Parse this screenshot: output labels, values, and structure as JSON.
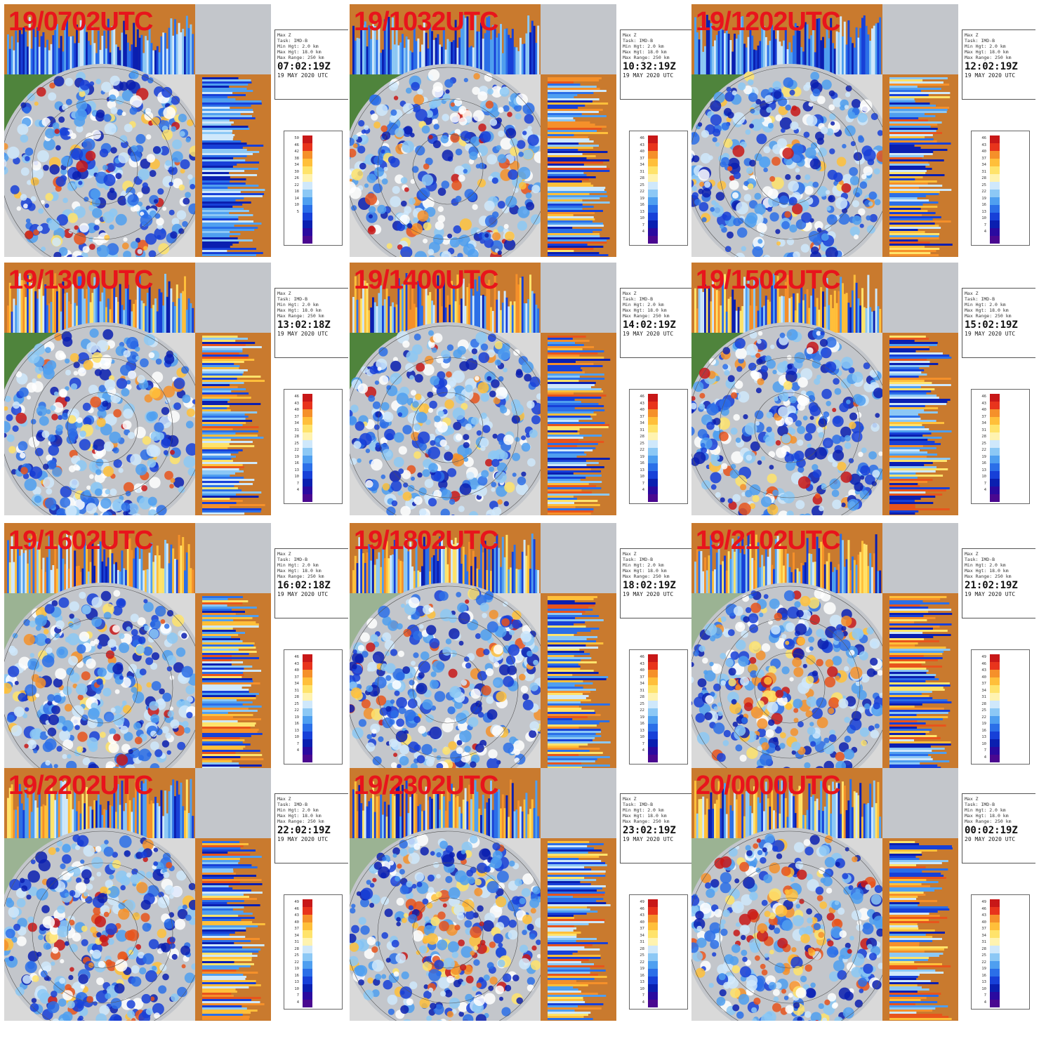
{
  "colors": {
    "timestamp_red": "#e8141c",
    "land_green": "#3f7a2a",
    "range_gray": "#c3c6cb",
    "side_brown": "#c97a2e"
  },
  "info_lines": [
    "Max Z",
    "Task: IMD-B",
    "Min Hgt: 2.0 km",
    "Max Hgt: 18.0 km",
    "Max Range: 250 km"
  ],
  "panels": [
    {
      "stamp": "19/0702UTC",
      "clock": "07:02:19Z",
      "date": "19 MAY 2020 UTC",
      "scale": [
        "50",
        "46",
        "42",
        "38",
        "34",
        "30",
        "26",
        "22",
        "18",
        "14",
        "10",
        "5"
      ]
    },
    {
      "stamp": "19/1032UTC",
      "clock": "10:32:19Z",
      "date": "19 MAY 2020 UTC",
      "scale": [
        "46",
        "43",
        "40",
        "37",
        "34",
        "31",
        "28",
        "25",
        "22",
        "19",
        "16",
        "13",
        "10",
        "7",
        "4"
      ]
    },
    {
      "stamp": "19/1202UTC",
      "clock": "12:02:19Z",
      "date": "19 MAY 2020 UTC",
      "scale": [
        "46",
        "43",
        "40",
        "37",
        "34",
        "31",
        "28",
        "25",
        "22",
        "19",
        "16",
        "13",
        "10",
        "7",
        "4"
      ]
    },
    {
      "stamp": "19/1300UTC",
      "clock": "13:02:18Z",
      "date": "19 MAY 2020 UTC",
      "scale": [
        "46",
        "43",
        "40",
        "37",
        "34",
        "31",
        "28",
        "25",
        "22",
        "19",
        "16",
        "13",
        "10",
        "7",
        "4"
      ]
    },
    {
      "stamp": "19/1400UTC",
      "clock": "14:02:19Z",
      "date": "19 MAY 2020 UTC",
      "scale": [
        "46",
        "43",
        "40",
        "37",
        "34",
        "31",
        "28",
        "25",
        "22",
        "19",
        "16",
        "13",
        "10",
        "7",
        "4"
      ]
    },
    {
      "stamp": "19/1502UTC",
      "clock": "15:02:19Z",
      "date": "19 MAY 2020 UTC",
      "scale": [
        "46",
        "43",
        "40",
        "37",
        "34",
        "31",
        "28",
        "25",
        "22",
        "19",
        "16",
        "13",
        "10",
        "7",
        "4"
      ]
    },
    {
      "stamp": "19/1602UTC",
      "clock": "16:02:18Z",
      "date": "19 MAY 2020 UTC",
      "scale": [
        "46",
        "43",
        "40",
        "37",
        "34",
        "31",
        "28",
        "25",
        "22",
        "19",
        "16",
        "13",
        "10",
        "7",
        "4"
      ]
    },
    {
      "stamp": "19/1802UTC",
      "clock": "18:02:19Z",
      "date": "19 MAY 2020 UTC",
      "scale": [
        "46",
        "43",
        "40",
        "37",
        "34",
        "31",
        "28",
        "25",
        "22",
        "19",
        "16",
        "13",
        "10",
        "7",
        "4"
      ]
    },
    {
      "stamp": "19/2102UTC",
      "clock": "21:02:19Z",
      "date": "19 MAY 2020 UTC",
      "scale": [
        "49",
        "46",
        "43",
        "40",
        "37",
        "34",
        "31",
        "28",
        "25",
        "22",
        "19",
        "16",
        "13",
        "10",
        "7",
        "4"
      ]
    },
    {
      "stamp": "19/2202UTC",
      "clock": "22:02:19Z",
      "date": "19 MAY 2020 UTC",
      "scale": [
        "49",
        "46",
        "43",
        "40",
        "37",
        "34",
        "31",
        "28",
        "25",
        "22",
        "19",
        "16",
        "13",
        "10",
        "7",
        "4"
      ]
    },
    {
      "stamp": "19/2302UTC",
      "clock": "23:02:19Z",
      "date": "19 MAY 2020 UTC",
      "scale": [
        "49",
        "46",
        "43",
        "40",
        "37",
        "34",
        "31",
        "28",
        "25",
        "22",
        "19",
        "16",
        "13",
        "10",
        "7",
        "4"
      ]
    },
    {
      "stamp": "20/0000UTC",
      "clock": "00:02:19Z",
      "date": "20 MAY 2020 UTC",
      "scale": [
        "49",
        "46",
        "43",
        "40",
        "37",
        "34",
        "31",
        "28",
        "25",
        "22",
        "19",
        "16",
        "13",
        "10",
        "7",
        "4"
      ]
    }
  ]
}
